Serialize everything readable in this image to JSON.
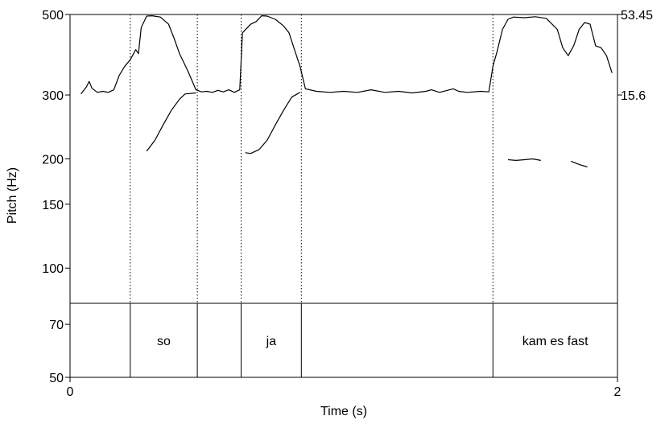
{
  "chart_data": {
    "type": "line",
    "title": "",
    "xlabel": "Time (s)",
    "ylabel": "Pitch (Hz)",
    "xlim": [
      0,
      2
    ],
    "ylim": [
      50,
      500
    ],
    "yscale": "log",
    "x_ticks": [
      {
        "value": 0,
        "label": "0"
      },
      {
        "value": 2,
        "label": "2"
      }
    ],
    "y_ticks": [
      {
        "value": 500,
        "label": "500"
      },
      {
        "value": 300,
        "label": "300"
      },
      {
        "value": 200,
        "label": "200"
      },
      {
        "value": 150,
        "label": "150"
      },
      {
        "value": 100,
        "label": "100"
      },
      {
        "value": 70,
        "label": "70"
      },
      {
        "value": 50,
        "label": "50"
      }
    ],
    "right_axis_labels": [
      {
        "label": "53.45",
        "at_pitch": 500
      },
      {
        "label": "15.6",
        "at_pitch": 300
      }
    ],
    "boundaries": [
      0.22,
      0.465,
      0.625,
      0.845,
      1.545
    ],
    "tier_divider_pitch": 80,
    "intervals": [
      {
        "label": "",
        "start": 0,
        "end": 0.22
      },
      {
        "label": "so",
        "start": 0.22,
        "end": 0.465
      },
      {
        "label": "",
        "start": 0.465,
        "end": 0.625
      },
      {
        "label": "ja",
        "start": 0.625,
        "end": 0.845
      },
      {
        "label": "",
        "start": 0.845,
        "end": 1.545
      },
      {
        "label": "kam es fast",
        "start": 1.545,
        "end": 2.0
      }
    ],
    "series": [
      {
        "points": [
          [
            0.04,
            302
          ],
          [
            0.06,
            316
          ],
          [
            0.07,
            327
          ],
          [
            0.08,
            313
          ],
          [
            0.1,
            305
          ],
          [
            0.12,
            307
          ],
          [
            0.14,
            305
          ],
          [
            0.16,
            310
          ],
          [
            0.18,
            340
          ],
          [
            0.2,
            360
          ],
          [
            0.22,
            375
          ],
          [
            0.24,
            400
          ],
          [
            0.25,
            390
          ],
          [
            0.26,
            460
          ],
          [
            0.28,
            495
          ],
          [
            0.3,
            496
          ],
          [
            0.33,
            492
          ],
          [
            0.36,
            470
          ],
          [
            0.38,
            430
          ],
          [
            0.4,
            390
          ],
          [
            0.43,
            350
          ],
          [
            0.46,
            310
          ],
          [
            0.48,
            306
          ],
          [
            0.5,
            307
          ],
          [
            0.52,
            305
          ],
          [
            0.54,
            309
          ],
          [
            0.56,
            306
          ],
          [
            0.58,
            310
          ],
          [
            0.6,
            305
          ],
          [
            0.62,
            310
          ],
          [
            0.63,
            445
          ],
          [
            0.66,
            470
          ],
          [
            0.68,
            478
          ],
          [
            0.7,
            496
          ],
          [
            0.72,
            495
          ],
          [
            0.75,
            485
          ],
          [
            0.78,
            465
          ],
          [
            0.8,
            445
          ],
          [
            0.82,
            400
          ],
          [
            0.84,
            360
          ],
          [
            0.86,
            312
          ],
          [
            0.9,
            307
          ],
          [
            0.95,
            305
          ],
          [
            1.0,
            307
          ],
          [
            1.05,
            305
          ],
          [
            1.1,
            310
          ],
          [
            1.15,
            305
          ],
          [
            1.2,
            307
          ],
          [
            1.25,
            304
          ],
          [
            1.3,
            307
          ],
          [
            1.32,
            310
          ],
          [
            1.35,
            305
          ],
          [
            1.4,
            312
          ],
          [
            1.42,
            307
          ],
          [
            1.45,
            305
          ],
          [
            1.5,
            307
          ],
          [
            1.53,
            306
          ],
          [
            1.545,
            360
          ],
          [
            1.56,
            395
          ],
          [
            1.58,
            455
          ],
          [
            1.6,
            485
          ],
          [
            1.62,
            492
          ],
          [
            1.66,
            490
          ],
          [
            1.7,
            493
          ],
          [
            1.74,
            488
          ],
          [
            1.78,
            455
          ],
          [
            1.8,
            405
          ],
          [
            1.82,
            385
          ],
          [
            1.84,
            410
          ],
          [
            1.86,
            455
          ],
          [
            1.88,
            475
          ],
          [
            1.9,
            470
          ],
          [
            1.92,
            410
          ],
          [
            1.94,
            405
          ],
          [
            1.96,
            385
          ],
          [
            1.98,
            345
          ]
        ]
      },
      {
        "points": [
          [
            0.28,
            210
          ],
          [
            0.31,
            225
          ],
          [
            0.34,
            248
          ],
          [
            0.37,
            272
          ],
          [
            0.4,
            292
          ],
          [
            0.42,
            302
          ],
          [
            0.46,
            304
          ]
        ]
      },
      {
        "points": [
          [
            0.64,
            208
          ],
          [
            0.66,
            207
          ],
          [
            0.69,
            212
          ],
          [
            0.72,
            225
          ],
          [
            0.75,
            248
          ],
          [
            0.78,
            272
          ],
          [
            0.81,
            296
          ],
          [
            0.84,
            305
          ]
        ]
      },
      {
        "points": [
          [
            1.6,
            199
          ],
          [
            1.63,
            198
          ],
          [
            1.66,
            199
          ],
          [
            1.69,
            200
          ],
          [
            1.72,
            198
          ]
        ]
      },
      {
        "points": [
          [
            1.83,
            197
          ],
          [
            1.86,
            193
          ],
          [
            1.89,
            190
          ]
        ]
      }
    ]
  }
}
